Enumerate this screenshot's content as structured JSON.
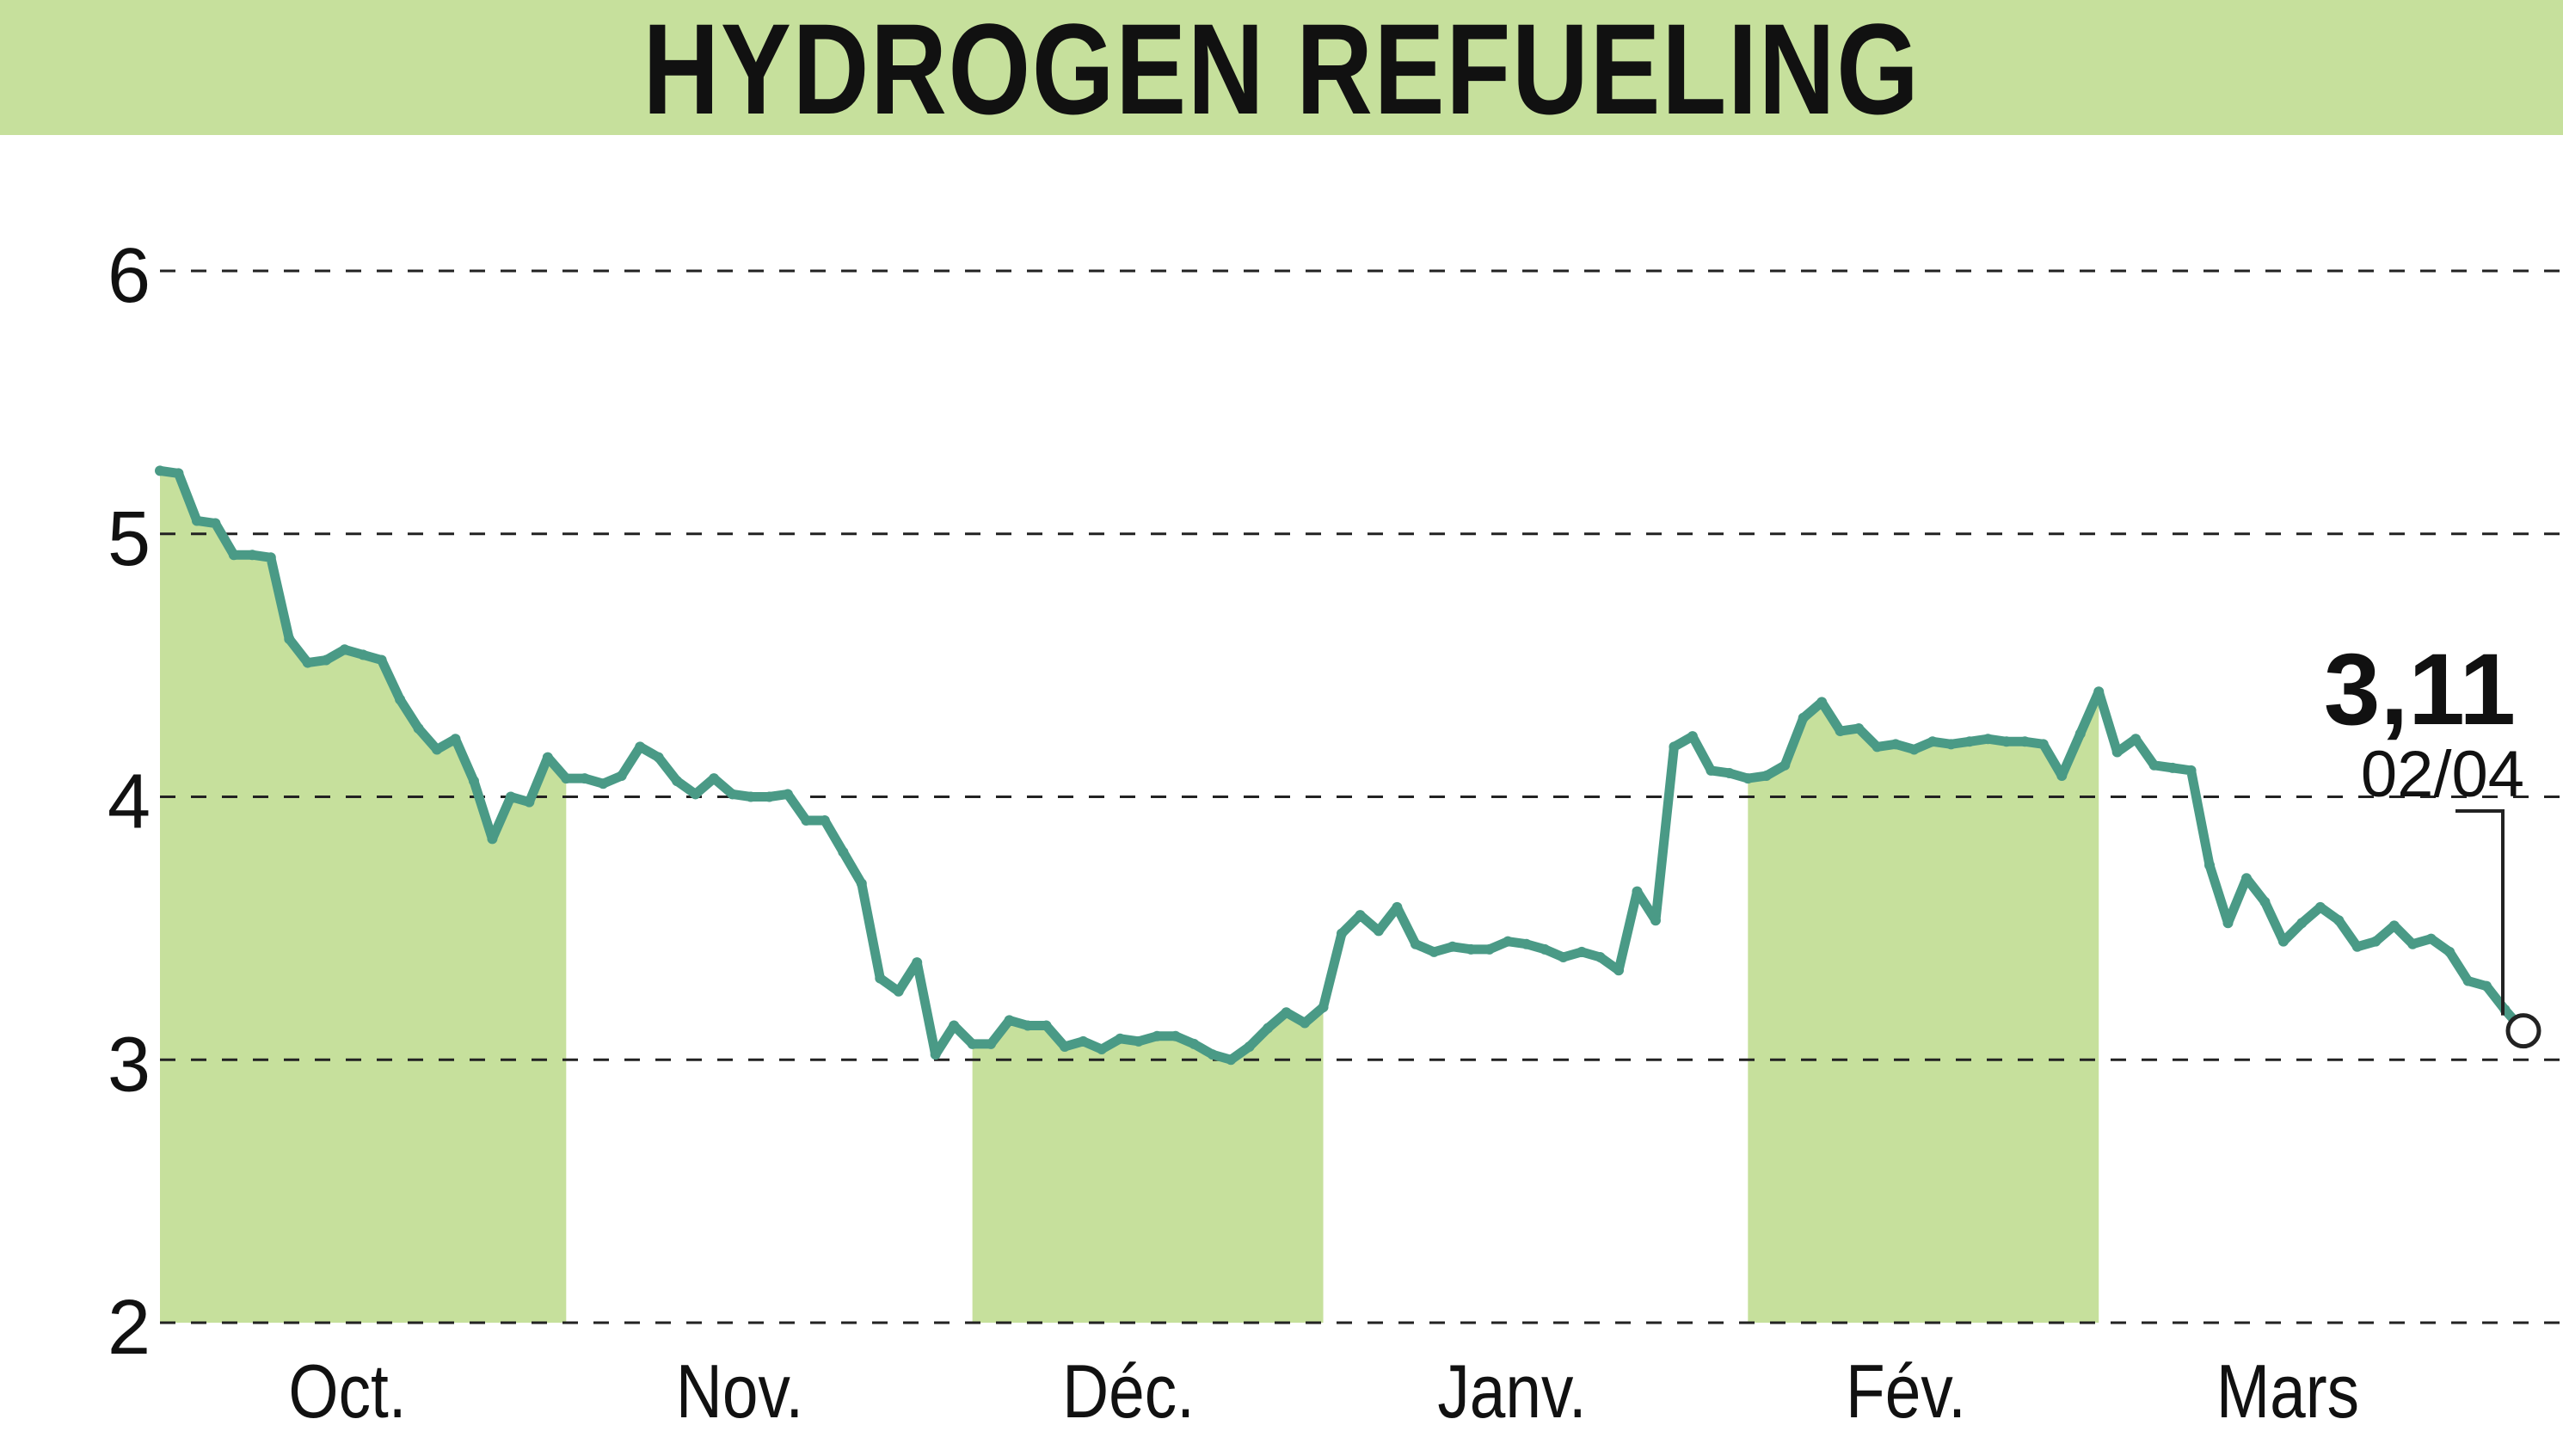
{
  "title": "HYDROGEN REFUELING",
  "colors": {
    "band": "#c6e09c",
    "line": "#4a9a86",
    "grid": "#222222",
    "text": "#111111"
  },
  "chart_data": {
    "type": "line",
    "title": "HYDROGEN REFUELING",
    "ylim": [
      2,
      6
    ],
    "y_ticks": [
      "2",
      "3",
      "4",
      "5",
      "6"
    ],
    "month_labels": [
      "Oct.",
      "Nov.",
      "Déc.",
      "Janv.",
      "Fév.",
      "Mars"
    ],
    "month_bands": [
      1,
      0,
      1,
      0,
      1,
      0,
      1
    ],
    "grid": true,
    "last_value": {
      "value": "3,11",
      "date": "02/04"
    },
    "series": [
      {
        "values": [
          5.24,
          5.23,
          5.05,
          5.04,
          4.92,
          4.92,
          4.91,
          4.6,
          4.51,
          4.52,
          4.56,
          4.54,
          4.52,
          4.37,
          4.26,
          4.18,
          4.22,
          4.06,
          3.84,
          4.0,
          3.98,
          4.15,
          4.07,
          4.07,
          4.05,
          4.08,
          4.19,
          4.15,
          4.06,
          4.01,
          4.07,
          4.01,
          4.0,
          4.0,
          4.01,
          3.91,
          3.91,
          3.79,
          3.67,
          3.31,
          3.26,
          3.37,
          3.02,
          3.13,
          3.06,
          3.06,
          3.15,
          3.13,
          3.13,
          3.05,
          3.07,
          3.04,
          3.08,
          3.07,
          3.09,
          3.09,
          3.06,
          3.02,
          3.0,
          3.05,
          3.12,
          3.18,
          3.14,
          3.2,
          3.48,
          3.55,
          3.49,
          3.58,
          3.44,
          3.41,
          3.43,
          3.42,
          3.42,
          3.45,
          3.44,
          3.42,
          3.39,
          3.41,
          3.39,
          3.34,
          3.64,
          3.53,
          4.19,
          4.23,
          4.1,
          4.09,
          4.07,
          4.08,
          4.12,
          4.3,
          4.36,
          4.25,
          4.26,
          4.19,
          4.2,
          4.18,
          4.21,
          4.2,
          4.21,
          4.22,
          4.21,
          4.21,
          4.2,
          4.08,
          4.24,
          4.4,
          4.17,
          4.22,
          4.12,
          4.11,
          4.1,
          3.74,
          3.52,
          3.69,
          3.6,
          3.45,
          3.52,
          3.58,
          3.53,
          3.43,
          3.45,
          3.51,
          3.44,
          3.46,
          3.41,
          3.3,
          3.28,
          3.19,
          3.11
        ]
      }
    ]
  }
}
